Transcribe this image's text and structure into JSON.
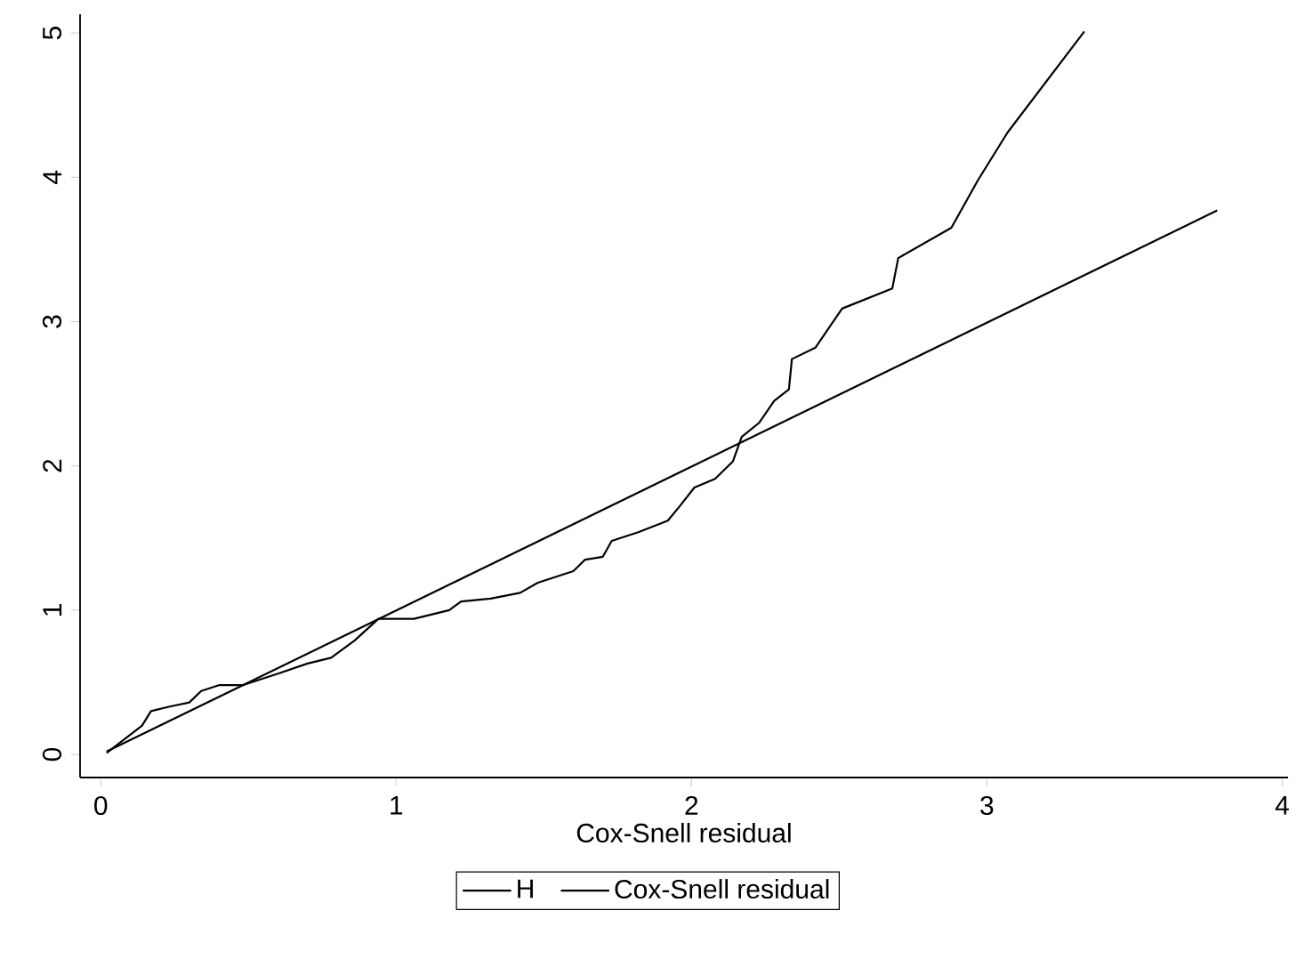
{
  "chart_data": {
    "type": "line",
    "xlabel": "Cox-Snell residual",
    "xlim": [
      -0.07,
      4.02
    ],
    "ylim": [
      -0.16,
      5.13
    ],
    "xticks": [
      0,
      1,
      2,
      3,
      4
    ],
    "yticks": [
      0,
      1,
      2,
      3,
      4,
      5
    ],
    "legend": "bottom",
    "marker": "none",
    "line_style": "solid",
    "series": [
      {
        "name": "H",
        "color": "#000000",
        "x": [
          0.02,
          0.14,
          0.17,
          0.23,
          0.3,
          0.34,
          0.4,
          0.48,
          0.54,
          0.6,
          0.7,
          0.78,
          0.86,
          0.94,
          1.06,
          1.18,
          1.22,
          1.32,
          1.42,
          1.48,
          1.6,
          1.64,
          1.7,
          1.73,
          1.82,
          1.92,
          1.96,
          2.01,
          2.08,
          2.14,
          2.17,
          2.23,
          2.28,
          2.33,
          2.34,
          2.42,
          2.51,
          2.68,
          2.7,
          2.88,
          2.97,
          3.07,
          3.33
        ],
        "values": [
          0.01,
          0.2,
          0.3,
          0.33,
          0.36,
          0.44,
          0.48,
          0.48,
          0.52,
          0.56,
          0.63,
          0.67,
          0.79,
          0.94,
          0.94,
          1.0,
          1.06,
          1.08,
          1.12,
          1.19,
          1.27,
          1.35,
          1.37,
          1.48,
          1.54,
          1.62,
          1.72,
          1.85,
          1.91,
          2.03,
          2.2,
          2.3,
          2.45,
          2.53,
          2.74,
          2.82,
          3.09,
          3.23,
          3.44,
          3.65,
          3.98,
          4.31,
          5.01
        ]
      },
      {
        "name": "Cox-Snell residual",
        "color": "#000000",
        "x": [
          0.02,
          3.78
        ],
        "values": [
          0.02,
          3.77
        ]
      }
    ]
  }
}
